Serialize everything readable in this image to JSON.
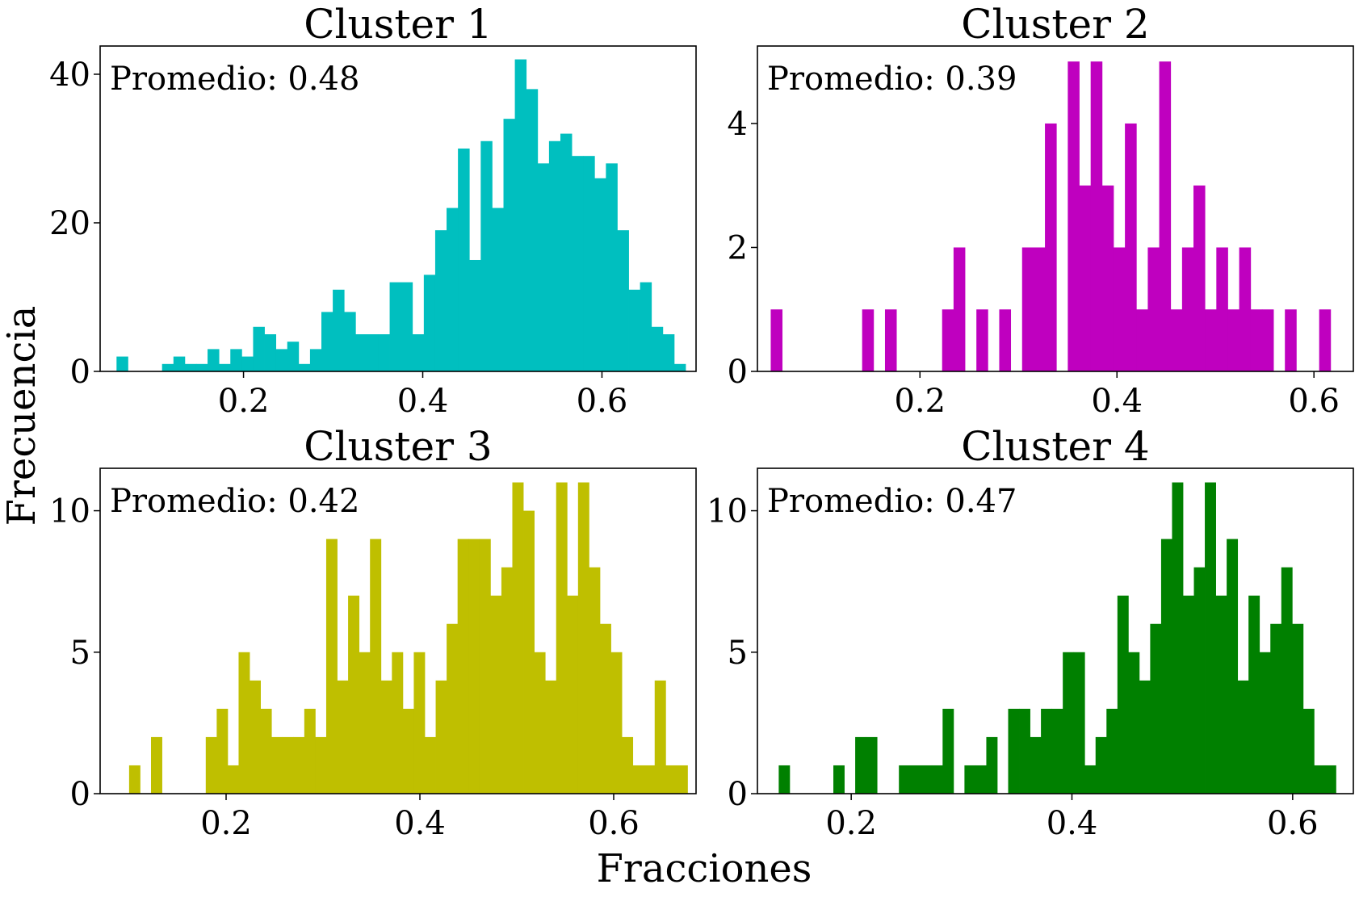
{
  "figure": {
    "xlabel": "Fracciones",
    "ylabel": "Frecuencia"
  },
  "chart_data": [
    {
      "type": "bar",
      "title": "Cluster 1",
      "annotation": "Promedio: 0.48",
      "color": "#00bfbf",
      "bin_width": 0.0127,
      "xlim": [
        0.04,
        0.705
      ],
      "ylim": [
        0,
        43.8
      ],
      "xticks": [
        0.2,
        0.4,
        0.6
      ],
      "xtick_labels": [
        "0.2",
        "0.4",
        "0.6"
      ],
      "yticks": [
        0,
        20,
        40
      ],
      "ytick_labels": [
        "0",
        "20",
        "40"
      ],
      "bins": [
        [
          0.0583,
          2
        ],
        [
          0.071,
          0
        ],
        [
          0.0837,
          0
        ],
        [
          0.0964,
          0
        ],
        [
          0.1091,
          1
        ],
        [
          0.1218,
          2
        ],
        [
          0.1345,
          1
        ],
        [
          0.1472,
          1
        ],
        [
          0.1599,
          3
        ],
        [
          0.1726,
          1
        ],
        [
          0.1853,
          3
        ],
        [
          0.198,
          2
        ],
        [
          0.2107,
          6
        ],
        [
          0.2234,
          5
        ],
        [
          0.2361,
          3
        ],
        [
          0.2488,
          4
        ],
        [
          0.2615,
          1
        ],
        [
          0.2742,
          3
        ],
        [
          0.2869,
          8
        ],
        [
          0.2996,
          11
        ],
        [
          0.3123,
          8
        ],
        [
          0.325,
          5
        ],
        [
          0.3377,
          5
        ],
        [
          0.3504,
          5
        ],
        [
          0.3631,
          12
        ],
        [
          0.3758,
          12
        ],
        [
          0.3885,
          5
        ],
        [
          0.4012,
          13
        ],
        [
          0.4139,
          19
        ],
        [
          0.4266,
          22
        ],
        [
          0.4393,
          30
        ],
        [
          0.452,
          15
        ],
        [
          0.4647,
          31
        ],
        [
          0.4774,
          22
        ],
        [
          0.4901,
          34
        ],
        [
          0.5028,
          42
        ],
        [
          0.5155,
          38
        ],
        [
          0.5282,
          28
        ],
        [
          0.5409,
          31
        ],
        [
          0.5536,
          32
        ],
        [
          0.5663,
          29
        ],
        [
          0.579,
          29
        ],
        [
          0.5917,
          26
        ],
        [
          0.6044,
          28
        ],
        [
          0.6171,
          19
        ],
        [
          0.6298,
          11
        ],
        [
          0.6425,
          12
        ],
        [
          0.6552,
          6
        ],
        [
          0.6679,
          5
        ],
        [
          0.6806,
          1
        ]
      ]
    },
    {
      "type": "bar",
      "title": "Cluster 2",
      "annotation": "Promedio: 0.39",
      "color": "#bf00bf",
      "bin_width": 0.0116,
      "xlim": [
        0.035,
        0.64
      ],
      "ylim": [
        0,
        5.25
      ],
      "xticks": [
        0.2,
        0.4,
        0.6
      ],
      "xtick_labels": [
        "0.2",
        "0.4",
        "0.6"
      ],
      "yticks": [
        0,
        2,
        4
      ],
      "ytick_labels": [
        "0",
        "2",
        "4"
      ],
      "bins": [
        [
          0.0485,
          1
        ],
        [
          0.0601,
          0
        ],
        [
          0.0717,
          0
        ],
        [
          0.0833,
          0
        ],
        [
          0.0949,
          0
        ],
        [
          0.1065,
          0
        ],
        [
          0.1181,
          0
        ],
        [
          0.1297,
          0
        ],
        [
          0.1413,
          1
        ],
        [
          0.1529,
          0
        ],
        [
          0.1645,
          1
        ],
        [
          0.1761,
          0
        ],
        [
          0.1877,
          0
        ],
        [
          0.1993,
          0
        ],
        [
          0.2109,
          0
        ],
        [
          0.2225,
          1
        ],
        [
          0.2341,
          2
        ],
        [
          0.2457,
          0
        ],
        [
          0.2573,
          1
        ],
        [
          0.2689,
          0
        ],
        [
          0.2805,
          1
        ],
        [
          0.2921,
          0
        ],
        [
          0.3037,
          2
        ],
        [
          0.3153,
          2
        ],
        [
          0.3269,
          4
        ],
        [
          0.3385,
          0
        ],
        [
          0.3501,
          5
        ],
        [
          0.3617,
          3
        ],
        [
          0.3733,
          5
        ],
        [
          0.3849,
          3
        ],
        [
          0.3965,
          2
        ],
        [
          0.4081,
          4
        ],
        [
          0.4197,
          1
        ],
        [
          0.4313,
          2
        ],
        [
          0.4429,
          5
        ],
        [
          0.4545,
          1
        ],
        [
          0.4661,
          2
        ],
        [
          0.4777,
          3
        ],
        [
          0.4893,
          1
        ],
        [
          0.5009,
          2
        ],
        [
          0.5125,
          1
        ],
        [
          0.5241,
          2
        ],
        [
          0.5357,
          1
        ],
        [
          0.5473,
          1
        ],
        [
          0.5589,
          0
        ],
        [
          0.5705,
          1
        ],
        [
          0.5821,
          0
        ],
        [
          0.5937,
          0
        ],
        [
          0.6053,
          1
        ]
      ]
    },
    {
      "type": "bar",
      "title": "Cluster 3",
      "annotation": "Promedio: 0.42",
      "color": "#bfbf00",
      "bin_width": 0.0113,
      "xlim": [
        0.07,
        0.685
      ],
      "ylim": [
        0,
        11.5
      ],
      "xticks": [
        0.2,
        0.4,
        0.6
      ],
      "xtick_labels": [
        "0.2",
        "0.4",
        "0.6"
      ],
      "yticks": [
        0,
        5,
        10
      ],
      "ytick_labels": [
        "0",
        "5",
        "10"
      ],
      "bins": [
        [
          0.0999,
          1
        ],
        [
          0.1112,
          0
        ],
        [
          0.1225,
          2
        ],
        [
          0.1338,
          0
        ],
        [
          0.1451,
          0
        ],
        [
          0.1564,
          0
        ],
        [
          0.1677,
          0
        ],
        [
          0.179,
          2
        ],
        [
          0.1903,
          3
        ],
        [
          0.2016,
          1
        ],
        [
          0.2129,
          5
        ],
        [
          0.2242,
          4
        ],
        [
          0.2355,
          3
        ],
        [
          0.2468,
          2
        ],
        [
          0.2581,
          2
        ],
        [
          0.2694,
          2
        ],
        [
          0.2807,
          3
        ],
        [
          0.292,
          2
        ],
        [
          0.3033,
          9
        ],
        [
          0.3146,
          4
        ],
        [
          0.3259,
          7
        ],
        [
          0.3372,
          5
        ],
        [
          0.3485,
          9
        ],
        [
          0.3598,
          4
        ],
        [
          0.3711,
          5
        ],
        [
          0.3824,
          3
        ],
        [
          0.3937,
          5
        ],
        [
          0.405,
          2
        ],
        [
          0.4163,
          4
        ],
        [
          0.4276,
          6
        ],
        [
          0.4389,
          9
        ],
        [
          0.4502,
          9
        ],
        [
          0.4615,
          9
        ],
        [
          0.4728,
          7
        ],
        [
          0.4841,
          8
        ],
        [
          0.4954,
          11
        ],
        [
          0.5067,
          10
        ],
        [
          0.518,
          5
        ],
        [
          0.5293,
          4
        ],
        [
          0.5406,
          11
        ],
        [
          0.5519,
          7
        ],
        [
          0.5632,
          11
        ],
        [
          0.5745,
          8
        ],
        [
          0.5858,
          6
        ],
        [
          0.5971,
          5
        ],
        [
          0.6084,
          2
        ],
        [
          0.6197,
          1
        ],
        [
          0.631,
          1
        ],
        [
          0.6423,
          4
        ],
        [
          0.6536,
          1
        ],
        [
          0.6649,
          1
        ]
      ]
    },
    {
      "type": "bar",
      "title": "Cluster 4",
      "annotation": "Promedio: 0.47",
      "color": "#008000",
      "bin_width": 0.0099,
      "xlim": [
        0.115,
        0.655
      ],
      "ylim": [
        0,
        11.5
      ],
      "xticks": [
        0.2,
        0.4,
        0.6
      ],
      "xtick_labels": [
        "0.2",
        "0.4",
        "0.6"
      ],
      "yticks": [
        0,
        5,
        10
      ],
      "ytick_labels": [
        "0",
        "5",
        "10"
      ],
      "bins": [
        [
          0.1343,
          1
        ],
        [
          0.1442,
          0
        ],
        [
          0.1541,
          0
        ],
        [
          0.164,
          0
        ],
        [
          0.1739,
          0
        ],
        [
          0.1838,
          1
        ],
        [
          0.1937,
          0
        ],
        [
          0.2036,
          2
        ],
        [
          0.2135,
          2
        ],
        [
          0.2234,
          0
        ],
        [
          0.2333,
          0
        ],
        [
          0.2432,
          1
        ],
        [
          0.2531,
          1
        ],
        [
          0.263,
          1
        ],
        [
          0.2729,
          1
        ],
        [
          0.2828,
          3
        ],
        [
          0.2927,
          0
        ],
        [
          0.3026,
          1
        ],
        [
          0.3125,
          1
        ],
        [
          0.3224,
          2
        ],
        [
          0.3323,
          0
        ],
        [
          0.3422,
          3
        ],
        [
          0.3521,
          3
        ],
        [
          0.362,
          2
        ],
        [
          0.3719,
          3
        ],
        [
          0.3818,
          3
        ],
        [
          0.3917,
          5
        ],
        [
          0.4016,
          5
        ],
        [
          0.4115,
          1
        ],
        [
          0.4214,
          2
        ],
        [
          0.4313,
          3
        ],
        [
          0.4412,
          7
        ],
        [
          0.4511,
          5
        ],
        [
          0.461,
          4
        ],
        [
          0.4709,
          6
        ],
        [
          0.4808,
          9
        ],
        [
          0.4907,
          11
        ],
        [
          0.5006,
          7
        ],
        [
          0.5105,
          8
        ],
        [
          0.5204,
          11
        ],
        [
          0.5303,
          7
        ],
        [
          0.5402,
          9
        ],
        [
          0.5501,
          4
        ],
        [
          0.56,
          7
        ],
        [
          0.5699,
          5
        ],
        [
          0.5798,
          6
        ],
        [
          0.5897,
          8
        ],
        [
          0.5996,
          6
        ],
        [
          0.6095,
          3
        ],
        [
          0.6194,
          1
        ],
        [
          0.6293,
          1
        ]
      ]
    }
  ]
}
